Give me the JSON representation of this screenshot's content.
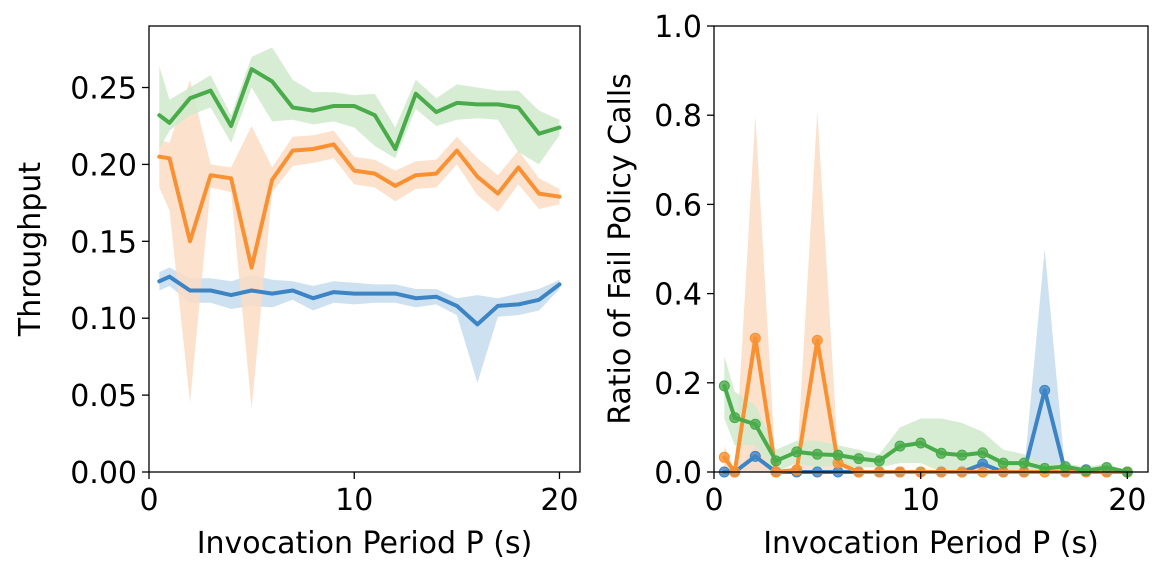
{
  "chart_data": [
    {
      "type": "line",
      "title": "",
      "xlabel": "Invocation Period P (s)",
      "ylabel": "Throughput",
      "xlim": [
        0,
        21
      ],
      "ylim": [
        0,
        0.29
      ],
      "xticks": [
        0,
        10,
        20
      ],
      "xtick_labels": [
        "0",
        "10",
        "20"
      ],
      "yticks": [
        0,
        0.05,
        0.1,
        0.15,
        0.2,
        0.25
      ],
      "ytick_labels": [
        "0.00",
        "0.05",
        "0.10",
        "0.15",
        "0.20",
        "0.25"
      ],
      "grid": false,
      "markers": false,
      "x": [
        0.5,
        1,
        2,
        3,
        4,
        5,
        6,
        7,
        8,
        9,
        10,
        11,
        12,
        13,
        14,
        15,
        16,
        17,
        18,
        19,
        20
      ],
      "series": [
        {
          "name": "blue",
          "color": "#3c84c4",
          "fill": "#c4dcee",
          "values": [
            0.124,
            0.127,
            0.118,
            0.118,
            0.115,
            0.118,
            0.116,
            0.118,
            0.113,
            0.117,
            0.116,
            0.116,
            0.116,
            0.113,
            0.114,
            0.108,
            0.096,
            0.108,
            0.109,
            0.112,
            0.122
          ],
          "upper": [
            0.13,
            0.133,
            0.126,
            0.126,
            0.124,
            0.128,
            0.125,
            0.124,
            0.121,
            0.124,
            0.123,
            0.122,
            0.122,
            0.119,
            0.119,
            0.113,
            0.115,
            0.113,
            0.116,
            0.119,
            0.125
          ],
          "lower": [
            0.118,
            0.121,
            0.11,
            0.11,
            0.106,
            0.108,
            0.107,
            0.112,
            0.105,
            0.11,
            0.109,
            0.11,
            0.11,
            0.107,
            0.109,
            0.102,
            0.058,
            0.101,
            0.102,
            0.105,
            0.119
          ]
        },
        {
          "name": "orange",
          "color": "#f99132",
          "fill": "#fcdcc4",
          "values": [
            0.205,
            0.204,
            0.15,
            0.193,
            0.191,
            0.133,
            0.19,
            0.209,
            0.21,
            0.213,
            0.196,
            0.194,
            0.186,
            0.193,
            0.194,
            0.209,
            0.192,
            0.181,
            0.198,
            0.181,
            0.179
          ],
          "upper": [
            0.216,
            0.214,
            0.255,
            0.2,
            0.198,
            0.225,
            0.198,
            0.218,
            0.219,
            0.222,
            0.205,
            0.203,
            0.196,
            0.202,
            0.203,
            0.218,
            0.204,
            0.193,
            0.209,
            0.191,
            0.184
          ],
          "lower": [
            0.185,
            0.17,
            0.045,
            0.185,
            0.182,
            0.041,
            0.182,
            0.199,
            0.201,
            0.204,
            0.187,
            0.185,
            0.176,
            0.184,
            0.185,
            0.2,
            0.18,
            0.169,
            0.187,
            0.171,
            0.174
          ]
        },
        {
          "name": "green",
          "color": "#4aab4a",
          "fill": "#cfeacc",
          "values": [
            0.232,
            0.227,
            0.243,
            0.248,
            0.225,
            0.262,
            0.254,
            0.237,
            0.235,
            0.238,
            0.238,
            0.232,
            0.21,
            0.246,
            0.234,
            0.24,
            0.239,
            0.239,
            0.237,
            0.22,
            0.224
          ],
          "upper": [
            0.264,
            0.242,
            0.25,
            0.258,
            0.232,
            0.27,
            0.276,
            0.255,
            0.247,
            0.247,
            0.245,
            0.246,
            0.224,
            0.255,
            0.243,
            0.252,
            0.25,
            0.248,
            0.248,
            0.235,
            0.229
          ],
          "lower": [
            0.21,
            0.222,
            0.232,
            0.237,
            0.214,
            0.25,
            0.228,
            0.229,
            0.226,
            0.228,
            0.224,
            0.212,
            0.204,
            0.236,
            0.225,
            0.229,
            0.23,
            0.229,
            0.208,
            0.2,
            0.219
          ]
        }
      ]
    },
    {
      "type": "line",
      "title": "",
      "xlabel": "Invocation Period P (s)",
      "ylabel": "Ratio of Fail Policy Calls",
      "xlim": [
        0,
        21
      ],
      "ylim": [
        0,
        1.0
      ],
      "xticks": [
        0,
        10,
        20
      ],
      "xtick_labels": [
        "0",
        "10",
        "20"
      ],
      "yticks": [
        0,
        0.2,
        0.4,
        0.6,
        0.8,
        1.0
      ],
      "ytick_labels": [
        "0.0",
        "0.2",
        "0.4",
        "0.6",
        "0.8",
        "1.0"
      ],
      "grid": false,
      "markers": true,
      "x": [
        0.5,
        1,
        2,
        3,
        4,
        5,
        6,
        7,
        8,
        9,
        10,
        11,
        12,
        13,
        14,
        15,
        16,
        17,
        18,
        19,
        20
      ],
      "series": [
        {
          "name": "blue",
          "color": "#3c84c4",
          "fill": "#c4dcee",
          "values": [
            0,
            0,
            0.035,
            0,
            0,
            0,
            0,
            0,
            0,
            0,
            0,
            0,
            0,
            0.018,
            0,
            0,
            0.183,
            0,
            0.005,
            0,
            0
          ],
          "upper": [
            0,
            0,
            0.06,
            0,
            0,
            0,
            0,
            0,
            0,
            0,
            0,
            0,
            0,
            0.03,
            0,
            0,
            0.5,
            0,
            0.01,
            0,
            0
          ],
          "lower": [
            0,
            0,
            0,
            0,
            0,
            0,
            0,
            0,
            0,
            0,
            0,
            0,
            0,
            0,
            0,
            0,
            0,
            0,
            0,
            0,
            0
          ]
        },
        {
          "name": "orange",
          "color": "#f99132",
          "fill": "#fcdcc4",
          "values": [
            0.033,
            0,
            0.3,
            0,
            0.005,
            0.295,
            0.02,
            0,
            0,
            0,
            0,
            0,
            0,
            0,
            0,
            0,
            0,
            0,
            0,
            0,
            0
          ],
          "upper": [
            0.06,
            0,
            0.8,
            0,
            0.01,
            0.81,
            0.04,
            0,
            0,
            0,
            0,
            0,
            0,
            0,
            0,
            0,
            0,
            0,
            0,
            0,
            0
          ],
          "lower": [
            0,
            0,
            0,
            0,
            0,
            0,
            0,
            0,
            0,
            0,
            0,
            0,
            0,
            0,
            0,
            0,
            0,
            0,
            0,
            0,
            0
          ]
        },
        {
          "name": "green",
          "color": "#4aab4a",
          "fill": "#cfeacc",
          "values": [
            0.193,
            0.122,
            0.107,
            0.025,
            0.045,
            0.04,
            0.038,
            0.03,
            0.025,
            0.058,
            0.065,
            0.042,
            0.038,
            0.043,
            0.02,
            0.02,
            0.008,
            0.012,
            0.003,
            0.01,
            0
          ],
          "upper": [
            0.26,
            0.18,
            0.15,
            0.05,
            0.07,
            0.07,
            0.06,
            0.05,
            0.04,
            0.1,
            0.12,
            0.12,
            0.11,
            0.09,
            0.05,
            0.04,
            0.02,
            0.02,
            0.01,
            0.02,
            0
          ],
          "lower": [
            0.12,
            0.06,
            0.06,
            0,
            0.02,
            0.01,
            0.015,
            0.01,
            0.01,
            0.02,
            0.02,
            0,
            0,
            0,
            0,
            0,
            0,
            0,
            0,
            0,
            0
          ]
        }
      ]
    }
  ]
}
